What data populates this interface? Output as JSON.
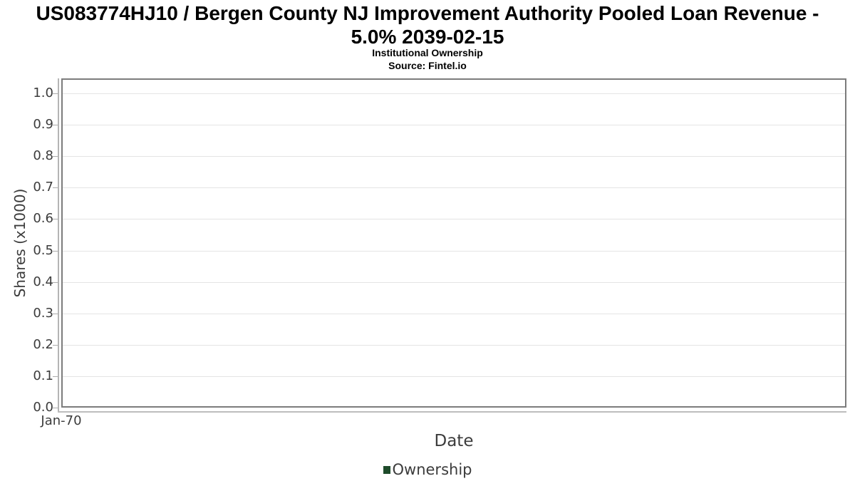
{
  "header": {
    "title_line1": "US083774HJ10 / Bergen County NJ Improvement Authority Pooled Loan Revenue -",
    "title_line2": "5.0% 2039-02-15",
    "subtitle": "Institutional Ownership",
    "source": "Source: Fintel.io"
  },
  "chart_data": {
    "type": "line",
    "title": "US083774HJ10 / Bergen County NJ Improvement Authority Pooled Loan Revenue - 5.0% 2039-02-15",
    "subtitle": "Institutional Ownership",
    "source": "Source: Fintel.io",
    "xlabel": "Date",
    "ylabel": "Shares (x1000)",
    "x_tick_labels": [
      "Jan-70"
    ],
    "y_ticks": [
      0.0,
      0.1,
      0.2,
      0.3,
      0.4,
      0.5,
      0.6,
      0.7,
      0.8,
      0.9,
      1.0
    ],
    "ylim": [
      0.0,
      1.05
    ],
    "grid": "horizontal",
    "legend_position": "bottom-center",
    "legend": [
      {
        "label": "Ownership",
        "color": "#1e4b2b"
      }
    ],
    "series": [
      {
        "name": "Ownership",
        "color": "#1e4b2b",
        "points": []
      }
    ],
    "note": "no data points plotted; empty plot area"
  },
  "colors": {
    "background": "#ffffff",
    "title_text": "#000000",
    "frame_border": "#7c7c7c",
    "axis_line": "#b5b5b5",
    "gridline": "#e4e4e4",
    "tick_text": "#3c3c3c",
    "axis_title_text": "#3c3c3c",
    "legend_text": "#3c3c3c"
  }
}
